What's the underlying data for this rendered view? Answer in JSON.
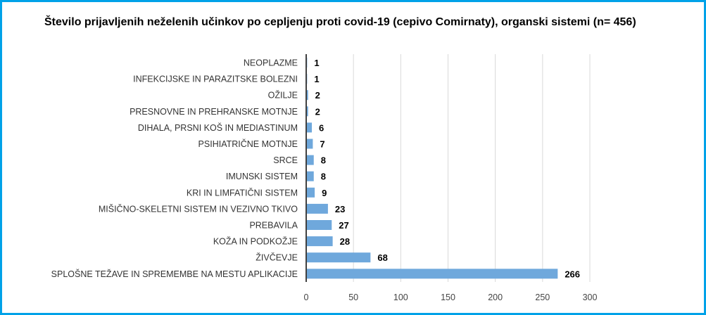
{
  "chart_data": {
    "type": "bar",
    "orientation": "horizontal",
    "title": "Število prijavljenih neželenih učinkov po cepljenju proti covid-19 (cepivo Comirnaty), organski sistemi (n= 456)",
    "categories": [
      "NEOPLAZME",
      "INFEKCIJSKE IN PARAZITSKE BOLEZNI",
      "OŽILJE",
      "PRESNOVNE IN PREHRANSKE MOTNJE",
      "DIHALA, PRSNI KOŠ IN MEDIASTINUM",
      "PSIHIATRIČNE MOTNJE",
      "SRCE",
      "IMUNSKI SISTEM",
      "KRI IN LIMFATIČNI SISTEM",
      "MIŠIČNO-SKELETNI SISTEM IN VEZIVNO TKIVO",
      "PREBAVILA",
      "KOŽA IN PODKOŽJE",
      "ŽIVČEVJE",
      "SPLOŠNE TEŽAVE IN SPREMEMBE NA MESTU APLIKACIJE"
    ],
    "values": [
      1,
      1,
      2,
      2,
      6,
      7,
      8,
      8,
      9,
      23,
      27,
      28,
      68,
      266
    ],
    "xlim": [
      0,
      300
    ],
    "xticks": [
      0,
      50,
      100,
      150,
      200,
      250,
      300
    ],
    "xlabel": "",
    "ylabel": "",
    "grid": "vertical",
    "legend": "none",
    "bar_color": "#6fa8dc",
    "frame_color": "#00a2e8"
  }
}
